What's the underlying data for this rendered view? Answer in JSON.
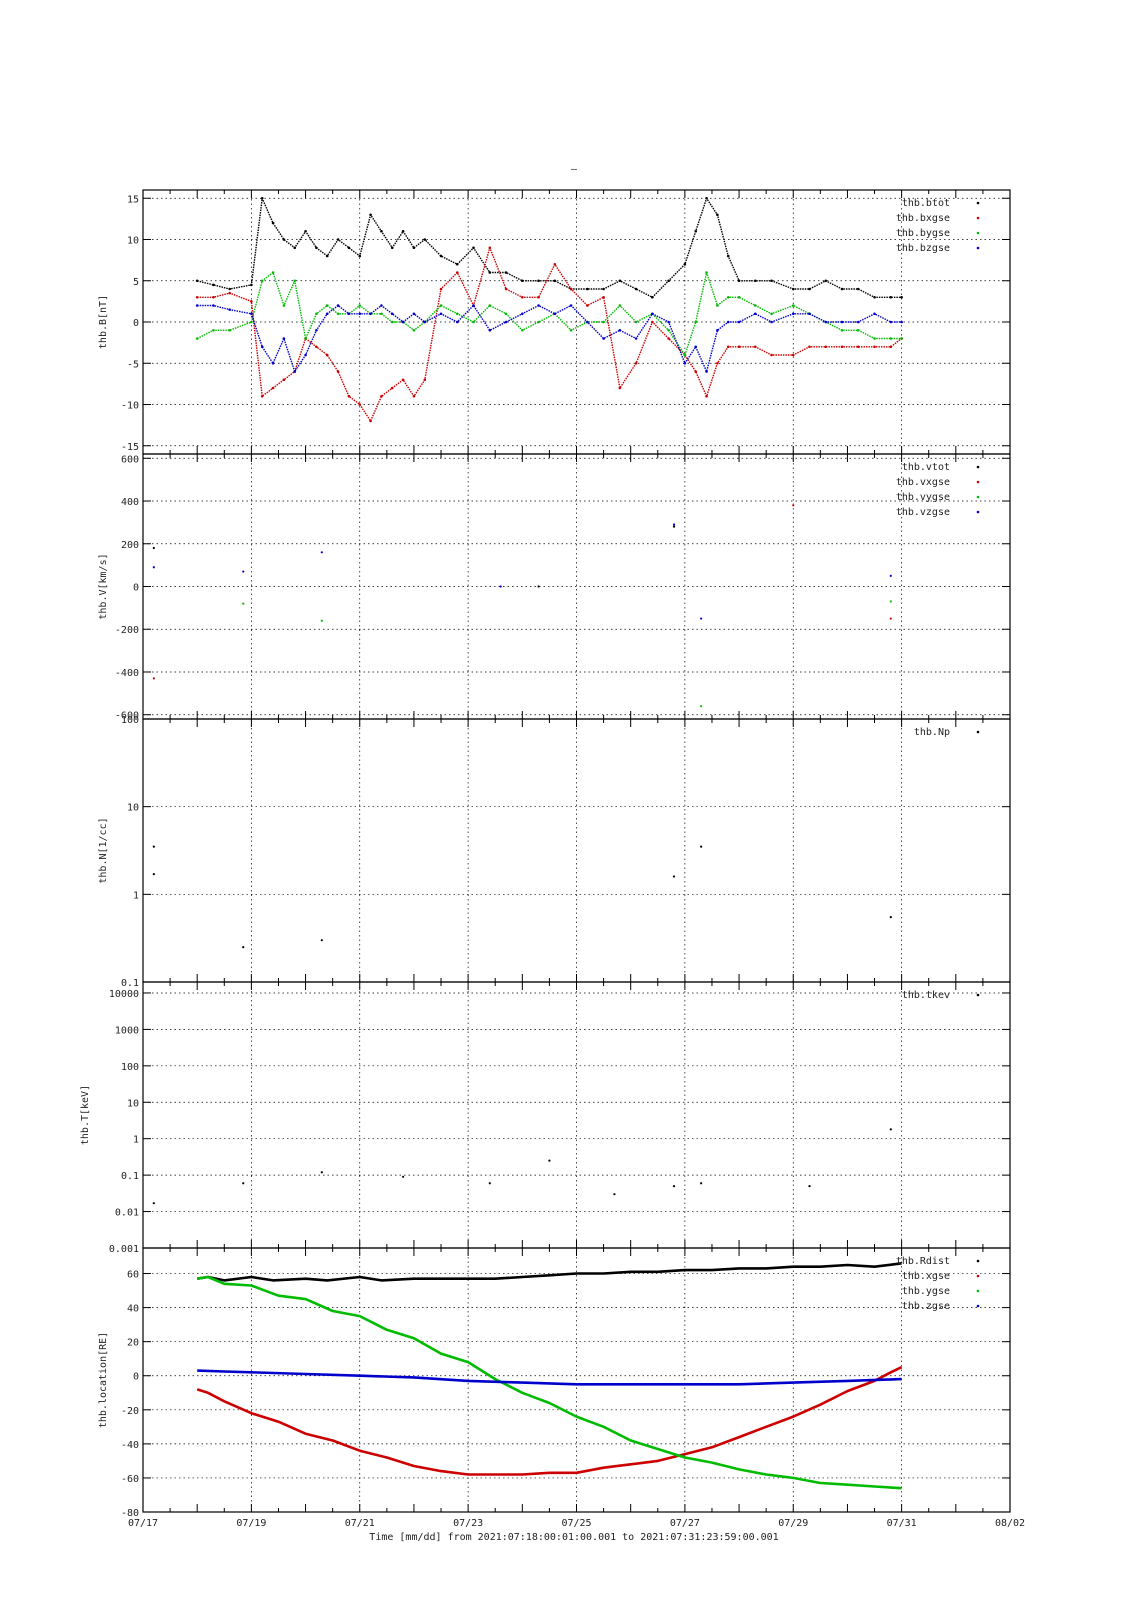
{
  "figure": {
    "top_mark": "–",
    "caption": "Time [mm/dd]  from 2021:07:18:00:01:00.001  to  2021:07:31:23:59:00.001"
  },
  "chart_data": [
    {
      "type": "scatter",
      "id": "B",
      "ylabel": "thb.B[nT]",
      "ylim": [
        -16,
        16
      ],
      "yticks": [
        -15,
        -10,
        -5,
        0,
        5,
        10,
        15
      ],
      "yscale": "linear",
      "grid": true,
      "legend_placement": "top-right",
      "series": [
        {
          "name": "thb.btot",
          "color": "#000000",
          "x": [
            1.0,
            1.3,
            1.6,
            2.0,
            2.2,
            2.4,
            2.6,
            2.8,
            3.0,
            3.2,
            3.4,
            3.6,
            3.8,
            4.0,
            4.2,
            4.4,
            4.6,
            4.8,
            5.0,
            5.2,
            5.5,
            5.8,
            6.1,
            6.4,
            6.7,
            7.0,
            7.3,
            7.6,
            7.9,
            8.2,
            8.5,
            8.8,
            9.1,
            9.4,
            9.7,
            10.0,
            10.2,
            10.4,
            10.6,
            10.8,
            11.0,
            11.3,
            11.6,
            12.0,
            12.3,
            12.6,
            12.9,
            13.2,
            13.5,
            13.8,
            14.0
          ],
          "y": [
            5,
            4.5,
            4,
            4.5,
            15,
            12,
            10,
            9,
            11,
            9,
            8,
            10,
            9,
            8,
            13,
            11,
            9,
            11,
            9,
            10,
            8,
            7,
            9,
            6,
            6,
            5,
            5,
            5,
            4,
            4,
            4,
            5,
            4,
            3,
            5,
            7,
            11,
            15,
            13,
            8,
            5,
            5,
            5,
            4,
            4,
            5,
            4,
            4,
            3,
            3,
            3
          ]
        },
        {
          "name": "thb.bxgse",
          "color": "#cc0000",
          "x": [
            1.0,
            1.3,
            1.6,
            2.0,
            2.2,
            2.4,
            2.6,
            2.8,
            3.0,
            3.2,
            3.4,
            3.6,
            3.8,
            4.0,
            4.2,
            4.4,
            4.6,
            4.8,
            5.0,
            5.2,
            5.5,
            5.8,
            6.1,
            6.4,
            6.7,
            7.0,
            7.3,
            7.6,
            7.9,
            8.2,
            8.5,
            8.8,
            9.1,
            9.4,
            9.7,
            10.0,
            10.2,
            10.4,
            10.6,
            10.8,
            11.0,
            11.3,
            11.6,
            12.0,
            12.3,
            12.6,
            12.9,
            13.2,
            13.5,
            13.8,
            14.0
          ],
          "y": [
            3,
            3,
            3.5,
            2.5,
            -9,
            -8,
            -7,
            -6,
            -2,
            -3,
            -4,
            -6,
            -9,
            -10,
            -12,
            -9,
            -8,
            -7,
            -9,
            -7,
            4,
            6,
            2,
            9,
            4,
            3,
            3,
            7,
            4,
            2,
            3,
            -8,
            -5,
            0,
            -2,
            -4,
            -6,
            -9,
            -5,
            -3,
            -3,
            -3,
            -4,
            -4,
            -3,
            -3,
            -3,
            -3,
            -3,
            -3,
            -2
          ]
        },
        {
          "name": "thb.bygse",
          "color": "#00bb00",
          "x": [
            1.0,
            1.3,
            1.6,
            2.0,
            2.2,
            2.4,
            2.6,
            2.8,
            3.0,
            3.2,
            3.4,
            3.6,
            3.8,
            4.0,
            4.2,
            4.4,
            4.6,
            4.8,
            5.0,
            5.2,
            5.5,
            5.8,
            6.1,
            6.4,
            6.7,
            7.0,
            7.3,
            7.6,
            7.9,
            8.2,
            8.5,
            8.8,
            9.1,
            9.4,
            9.7,
            10.0,
            10.2,
            10.4,
            10.6,
            10.8,
            11.0,
            11.3,
            11.6,
            12.0,
            12.3,
            12.6,
            12.9,
            13.2,
            13.5,
            13.8,
            14.0
          ],
          "y": [
            -2,
            -1,
            -1,
            0,
            5,
            6,
            2,
            5,
            -2,
            1,
            2,
            1,
            1,
            2,
            1,
            1,
            0,
            0,
            -1,
            0,
            2,
            1,
            0,
            2,
            1,
            -1,
            0,
            1,
            -1,
            0,
            0,
            2,
            0,
            1,
            -1,
            -4,
            0,
            6,
            2,
            3,
            3,
            2,
            1,
            2,
            1,
            0,
            -1,
            -1,
            -2,
            -2,
            -2
          ]
        },
        {
          "name": "thb.bzgse",
          "color": "#0000cc",
          "x": [
            1.0,
            1.3,
            1.6,
            2.0,
            2.2,
            2.4,
            2.6,
            2.8,
            3.0,
            3.2,
            3.4,
            3.6,
            3.8,
            4.0,
            4.2,
            4.4,
            4.6,
            4.8,
            5.0,
            5.2,
            5.5,
            5.8,
            6.1,
            6.4,
            6.7,
            7.0,
            7.3,
            7.6,
            7.9,
            8.2,
            8.5,
            8.8,
            9.1,
            9.4,
            9.7,
            10.0,
            10.2,
            10.4,
            10.6,
            10.8,
            11.0,
            11.3,
            11.6,
            12.0,
            12.3,
            12.6,
            12.9,
            13.2,
            13.5,
            13.8,
            14.0
          ],
          "y": [
            2,
            2,
            1.5,
            1,
            -3,
            -5,
            -2,
            -6,
            -4,
            -1,
            1,
            2,
            1,
            1,
            1,
            2,
            1,
            0,
            1,
            0,
            1,
            0,
            2,
            -1,
            0,
            1,
            2,
            1,
            2,
            0,
            -2,
            -1,
            -2,
            1,
            0,
            -5,
            -3,
            -6,
            -1,
            0,
            0,
            1,
            0,
            1,
            1,
            0,
            0,
            0,
            1,
            0,
            0
          ]
        }
      ]
    },
    {
      "type": "scatter",
      "id": "V",
      "ylabel": "thb.V[km/s]",
      "ylim": [
        -620,
        620
      ],
      "yticks": [
        -600,
        -400,
        -200,
        0,
        200,
        400,
        600
      ],
      "yscale": "linear",
      "grid": true,
      "legend_placement": "top-right",
      "series": [
        {
          "name": "thb.vtot",
          "color": "#000000",
          "x": [
            0.2,
            7.3,
            9.8
          ],
          "y": [
            180,
            0,
            280
          ]
        },
        {
          "name": "thb.vxgse",
          "color": "#cc0000",
          "x": [
            0.2,
            13.8,
            12.0
          ],
          "y": [
            -430,
            -150,
            380
          ]
        },
        {
          "name": "thb.vygse",
          "color": "#00bb00",
          "x": [
            1.85,
            3.3,
            10.3,
            13.8
          ],
          "y": [
            -80,
            -160,
            -560,
            -70
          ]
        },
        {
          "name": "thb.vzgse",
          "color": "#0000cc",
          "x": [
            0.2,
            1.85,
            3.3,
            6.6,
            9.8,
            10.3,
            13.8
          ],
          "y": [
            90,
            70,
            160,
            0,
            290,
            -150,
            50
          ]
        }
      ]
    },
    {
      "type": "scatter",
      "id": "N",
      "ylabel": "thb.N[1/cc]",
      "ylim": [
        0.1,
        100
      ],
      "yticks": [
        0.1,
        1,
        10,
        100
      ],
      "yscale": "log",
      "grid": true,
      "legend_placement": "top-right",
      "series": [
        {
          "name": "thb.Np",
          "color": "#000000",
          "x": [
            0.2,
            0.2,
            1.85,
            3.3,
            9.8,
            10.3,
            13.8
          ],
          "y": [
            3.5,
            1.7,
            0.25,
            0.3,
            1.6,
            3.5,
            0.55
          ]
        }
      ]
    },
    {
      "type": "scatter",
      "id": "T",
      "ylabel": "thb.T[keV]",
      "ylim": [
        0.001,
        20000
      ],
      "yticks": [
        0.001,
        0.01,
        0.1,
        1,
        10,
        100,
        1000,
        10000
      ],
      "ytick_labels": [
        "0.001",
        "0.01",
        "0.1",
        "1",
        "10",
        "100",
        "1000",
        "10000"
      ],
      "yscale": "log",
      "grid": true,
      "legend_placement": "top-right",
      "series": [
        {
          "name": "thb.tkev",
          "color": "#000000",
          "x": [
            0.2,
            1.85,
            3.3,
            4.8,
            6.4,
            7.5,
            8.7,
            9.8,
            10.3,
            12.3,
            13.8
          ],
          "y": [
            0.017,
            0.06,
            0.12,
            0.09,
            0.06,
            0.25,
            0.03,
            0.05,
            0.06,
            0.05,
            1.8
          ]
        }
      ]
    },
    {
      "type": "line",
      "id": "location",
      "ylabel": "thb.location[RE]",
      "ylim": [
        -80,
        75
      ],
      "yticks": [
        -80,
        -60,
        -40,
        -20,
        0,
        20,
        40,
        60
      ],
      "yscale": "linear",
      "grid": true,
      "legend_placement": "top-right",
      "series": [
        {
          "name": "thb.Rdist",
          "color": "#000000",
          "x": [
            1.0,
            1.2,
            1.5,
            2.0,
            2.4,
            3.0,
            3.4,
            4.0,
            4.4,
            5.0,
            5.5,
            6.0,
            6.5,
            7.0,
            7.5,
            8.0,
            8.5,
            9.0,
            9.5,
            10.0,
            10.5,
            11.0,
            11.5,
            12.0,
            12.5,
            13.0,
            13.5,
            14.0
          ],
          "y": [
            57,
            58,
            56,
            58,
            56,
            57,
            56,
            58,
            56,
            57,
            57,
            57,
            57,
            58,
            59,
            60,
            60,
            61,
            61,
            62,
            62,
            63,
            63,
            64,
            64,
            65,
            64,
            66
          ]
        },
        {
          "name": "thb.xgse",
          "color": "#cc0000",
          "x": [
            1.0,
            1.2,
            1.5,
            2.0,
            2.5,
            3.0,
            3.5,
            4.0,
            4.5,
            5.0,
            5.5,
            6.0,
            6.5,
            7.0,
            7.5,
            8.0,
            8.5,
            9.0,
            9.5,
            10.0,
            10.5,
            11.0,
            11.5,
            12.0,
            12.5,
            13.0,
            13.5,
            13.8,
            14.0
          ],
          "y": [
            -8,
            -10,
            -15,
            -22,
            -27,
            -34,
            -38,
            -44,
            -48,
            -53,
            -56,
            -58,
            -58,
            -58,
            -57,
            -57,
            -54,
            -52,
            -50,
            -46,
            -42,
            -36,
            -30,
            -24,
            -17,
            -9,
            -3,
            2,
            5
          ]
        },
        {
          "name": "thb.ygse",
          "color": "#00bb00",
          "x": [
            1.0,
            1.2,
            1.5,
            2.0,
            2.5,
            3.0,
            3.5,
            4.0,
            4.5,
            5.0,
            5.5,
            6.0,
            6.5,
            7.0,
            7.5,
            8.0,
            8.5,
            9.0,
            9.5,
            10.0,
            10.5,
            11.0,
            11.5,
            12.0,
            12.5,
            13.0,
            13.5,
            14.0
          ],
          "y": [
            57,
            58,
            54,
            53,
            47,
            45,
            38,
            35,
            27,
            22,
            13,
            8,
            -2,
            -10,
            -16,
            -24,
            -30,
            -38,
            -43,
            -48,
            -51,
            -55,
            -58,
            -60,
            -63,
            -64,
            -65,
            -66
          ]
        },
        {
          "name": "thb.zgse",
          "color": "#0000cc",
          "x": [
            1.0,
            1.5,
            2.0,
            3.0,
            4.0,
            5.0,
            6.0,
            7.0,
            8.0,
            9.0,
            10.0,
            11.0,
            12.0,
            13.0,
            14.0
          ],
          "y": [
            3,
            2.5,
            2,
            1,
            0,
            -1,
            -3,
            -4,
            -5,
            -5,
            -5,
            -5,
            -4,
            -3,
            -2
          ]
        }
      ]
    }
  ],
  "xaxis": {
    "xlim": [
      0,
      16
    ],
    "major_ticks": [
      0,
      2,
      4,
      6,
      8,
      10,
      12,
      14,
      16
    ],
    "tick_labels": [
      "07/17",
      "07/19",
      "07/21",
      "07/23",
      "07/25",
      "07/27",
      "07/29",
      "07/31",
      "08/02"
    ]
  }
}
